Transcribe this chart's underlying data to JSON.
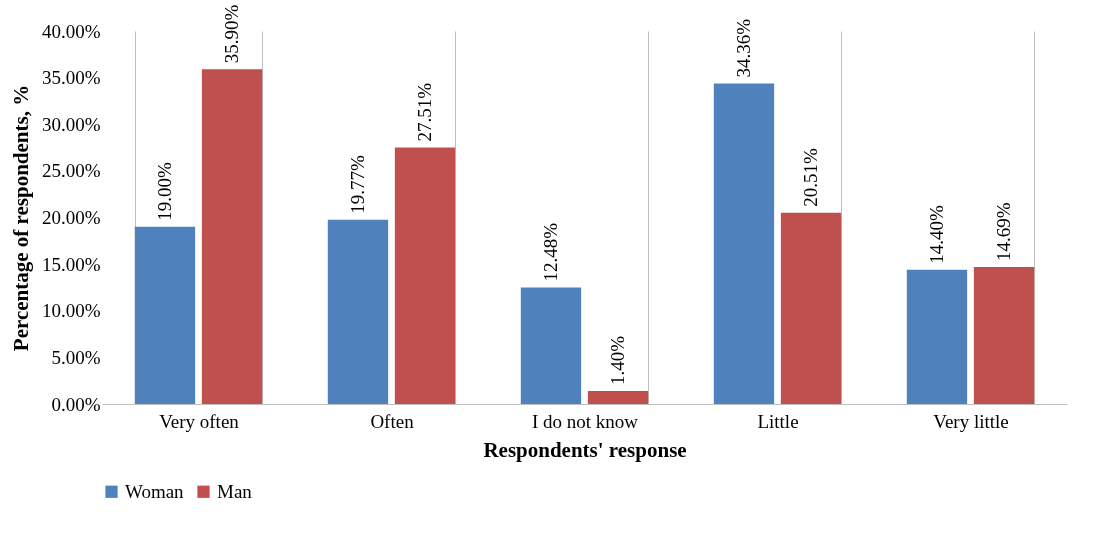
{
  "chart_data": {
    "type": "bar",
    "xlabel": "Respondents' response",
    "ylabel": "Percentage of respondents, %",
    "categories": [
      "Very often",
      "Often",
      "I do not know",
      "Little",
      "Very little"
    ],
    "series": [
      {
        "name": "Woman",
        "color": "#4f81bd",
        "values": [
          19.0,
          19.77,
          12.48,
          34.36,
          14.4
        ],
        "value_labels": [
          "19.00%",
          "19.77%",
          "12.48%",
          "34.36%",
          "14.40%"
        ]
      },
      {
        "name": "Man",
        "color": "#c0504d",
        "values": [
          35.9,
          27.51,
          1.4,
          20.51,
          14.69
        ],
        "value_labels": [
          "35.90%",
          "27.51%",
          "1.40%",
          "20.51%",
          "14.69%"
        ]
      }
    ],
    "ylim": [
      0,
      40
    ],
    "yticks": [
      {
        "value": 0,
        "label": "0.00%"
      },
      {
        "value": 5,
        "label": "5.00%"
      },
      {
        "value": 10,
        "label": "10.00%"
      },
      {
        "value": 15,
        "label": "15.00%"
      },
      {
        "value": 20,
        "label": "20.00%"
      },
      {
        "value": 25,
        "label": "25.00%"
      },
      {
        "value": 30,
        "label": "30.00%"
      },
      {
        "value": 35,
        "label": "35.00%"
      },
      {
        "value": 40,
        "label": "40.00%"
      }
    ],
    "grid": "x",
    "legend": "bottom"
  }
}
